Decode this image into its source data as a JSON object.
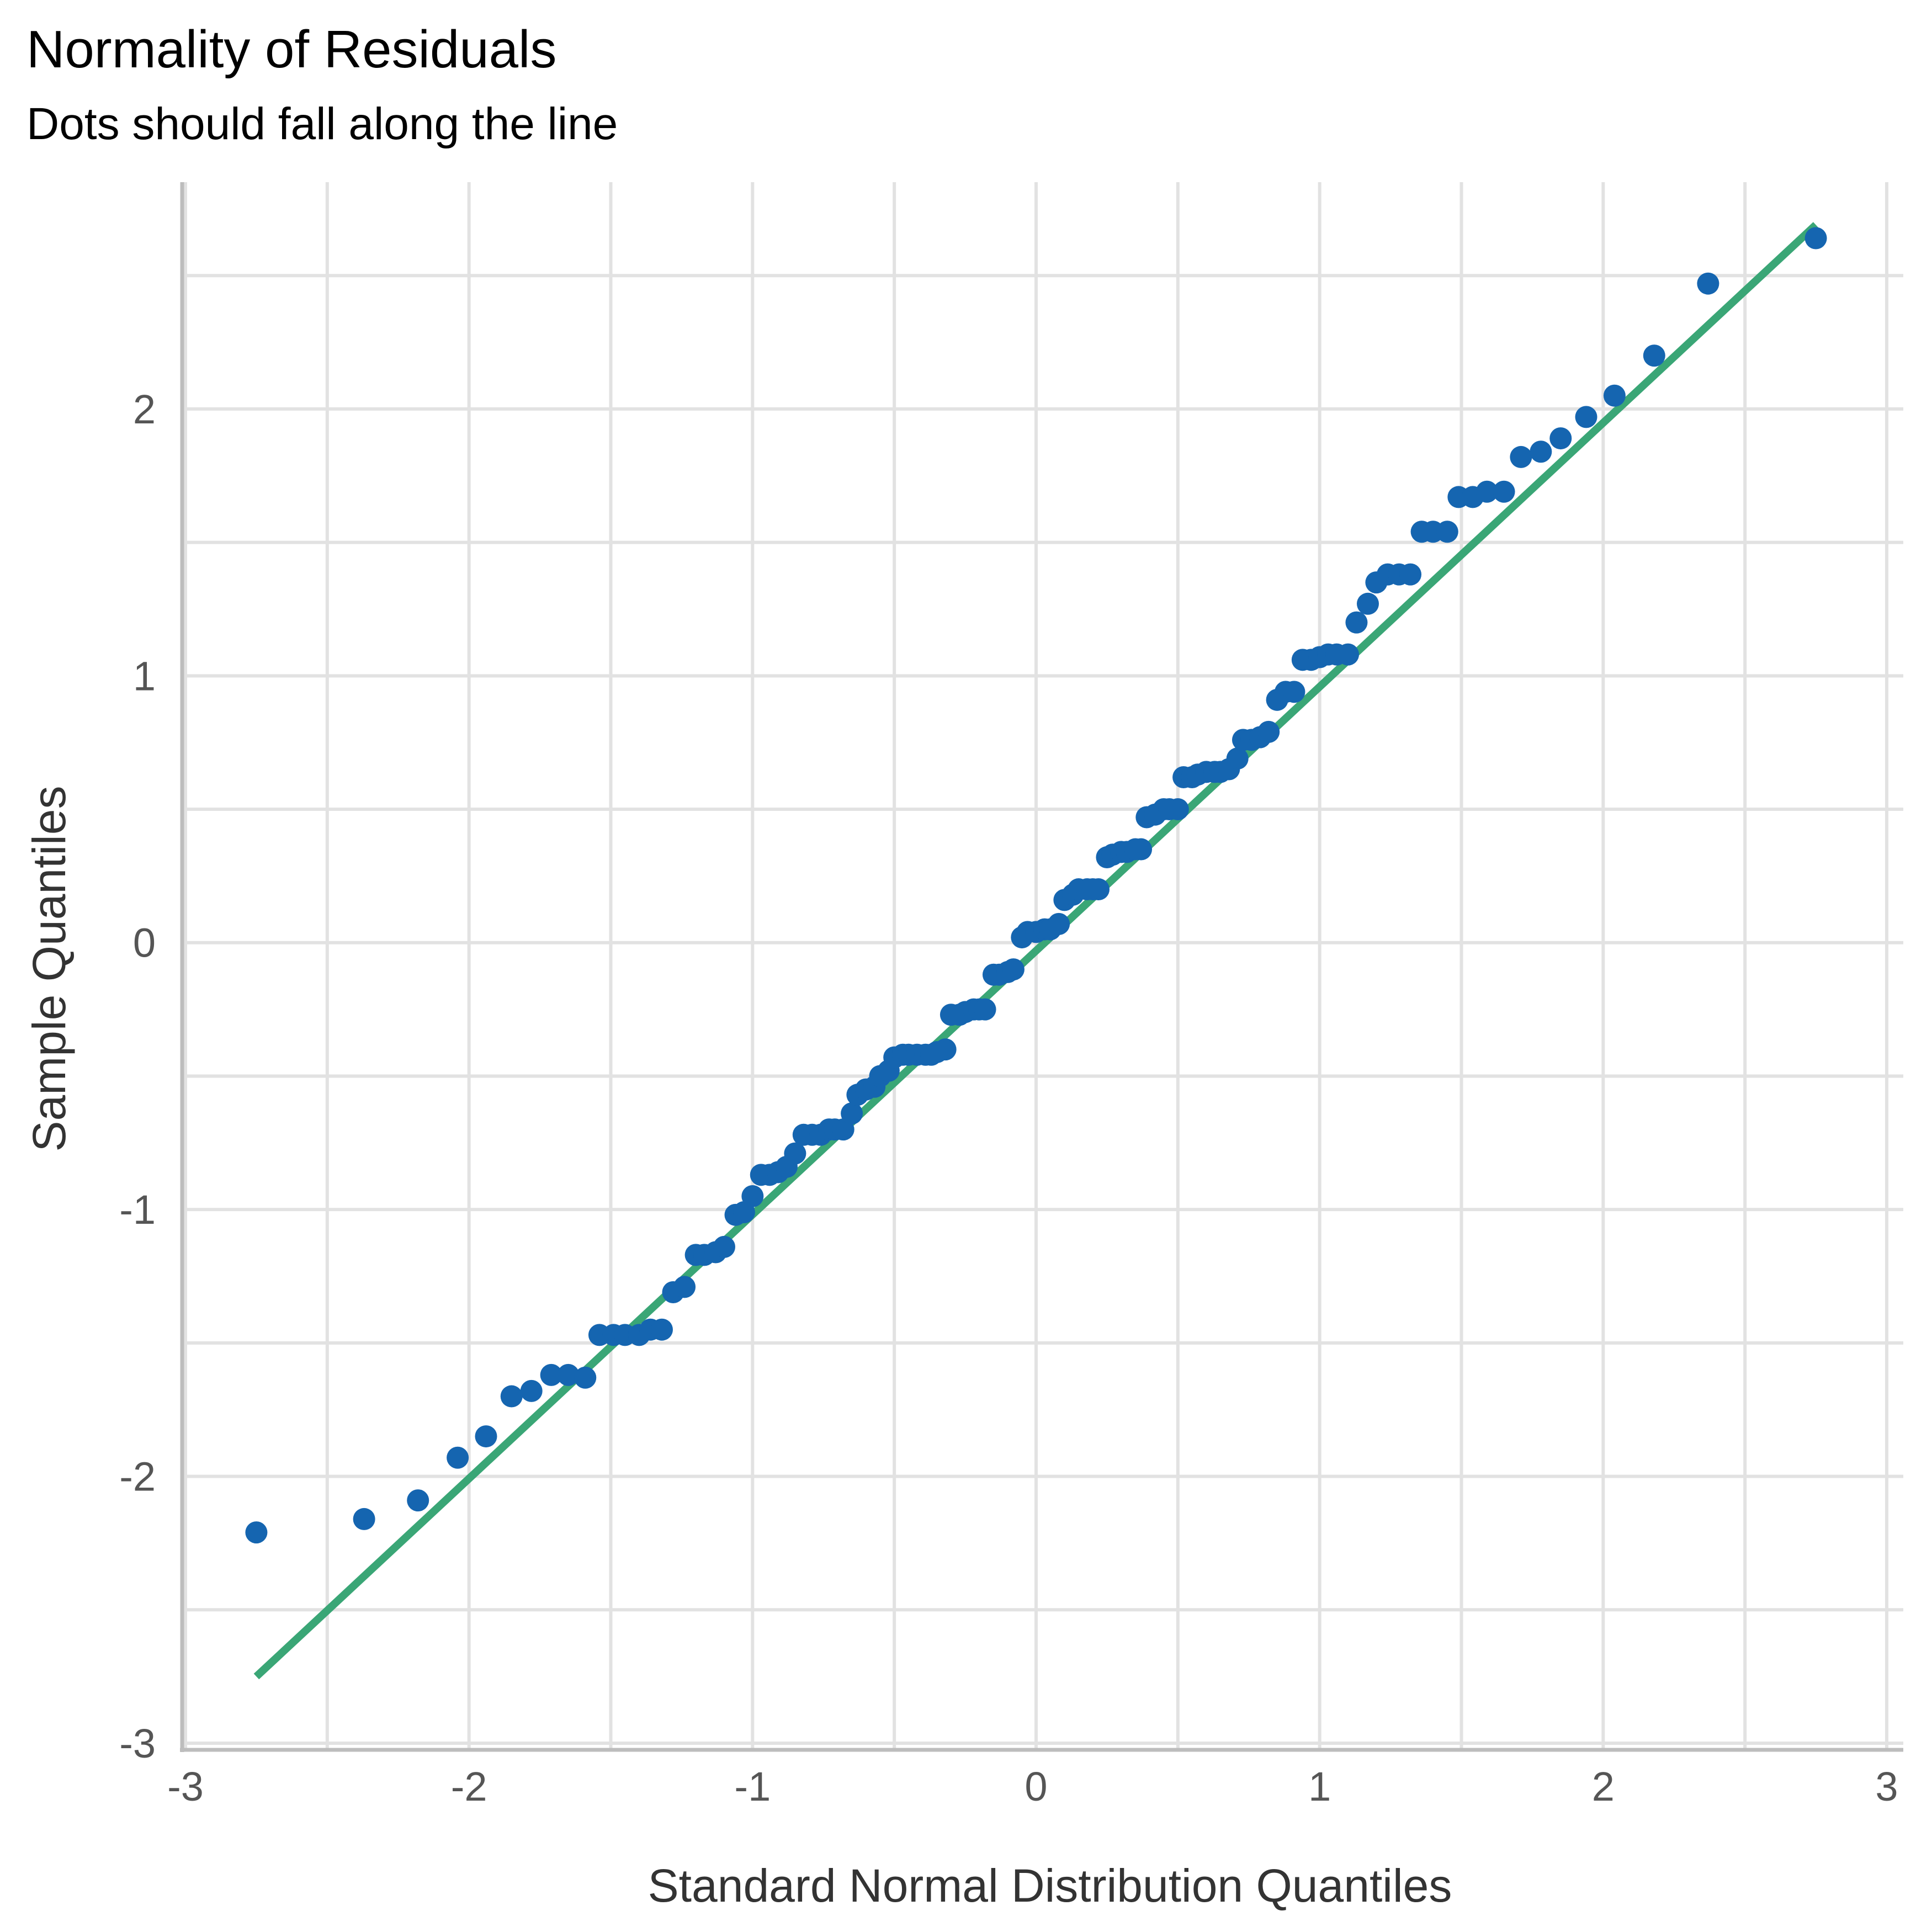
{
  "chart_data": {
    "type": "scatter",
    "title": "Normality of Residuals",
    "subtitle": "Dots should fall along the line",
    "xlabel": "Standard Normal Distribution Quantiles",
    "ylabel": "Sample Quantiles",
    "xlim": [
      -3,
      3
    ],
    "ylim": [
      -3,
      2.85
    ],
    "xticks": [
      -3,
      -2,
      -1,
      0,
      1,
      2,
      3
    ],
    "xtick_labels": [
      "-3",
      "-2",
      "-1",
      "0",
      "1",
      "2",
      "3"
    ],
    "yticks": [
      -3,
      -2,
      -1,
      0,
      1,
      2
    ],
    "ytick_labels": [
      "-3",
      "-2",
      "-1",
      "0",
      "1",
      "2"
    ],
    "grid": true,
    "reference_line": {
      "x": [
        -2.75,
        2.75
      ],
      "y": [
        -2.75,
        2.69
      ],
      "color": "#3AA676"
    },
    "point_color": "#1565B0",
    "points": [
      [
        -2.75,
        -2.21
      ],
      [
        -2.37,
        -2.16
      ],
      [
        -2.18,
        -2.09
      ],
      [
        -2.04,
        -1.93
      ],
      [
        -1.94,
        -1.85
      ],
      [
        -1.85,
        -1.7
      ],
      [
        -1.78,
        -1.68
      ],
      [
        -1.71,
        -1.62
      ],
      [
        -1.65,
        -1.62
      ],
      [
        -1.59,
        -1.63
      ],
      [
        -1.54,
        -1.47
      ],
      [
        -1.49,
        -1.47
      ],
      [
        -1.45,
        -1.47
      ],
      [
        -1.4,
        -1.47
      ],
      [
        -1.36,
        -1.45
      ],
      [
        -1.32,
        -1.45
      ],
      [
        -1.28,
        -1.31
      ],
      [
        -1.24,
        -1.29
      ],
      [
        -1.2,
        -1.17
      ],
      [
        -1.17,
        -1.17
      ],
      [
        -1.13,
        -1.16
      ],
      [
        -1.1,
        -1.14
      ],
      [
        -1.06,
        -1.02
      ],
      [
        -1.03,
        -1.01
      ],
      [
        -1.0,
        -0.95
      ],
      [
        -0.97,
        -0.87
      ],
      [
        -0.94,
        -0.87
      ],
      [
        -0.91,
        -0.86
      ],
      [
        -0.88,
        -0.84
      ],
      [
        -0.85,
        -0.79
      ],
      [
        -0.82,
        -0.72
      ],
      [
        -0.79,
        -0.72
      ],
      [
        -0.76,
        -0.72
      ],
      [
        -0.73,
        -0.7
      ],
      [
        -0.71,
        -0.7
      ],
      [
        -0.68,
        -0.7
      ],
      [
        -0.65,
        -0.64
      ],
      [
        -0.63,
        -0.57
      ],
      [
        -0.6,
        -0.55
      ],
      [
        -0.57,
        -0.54
      ],
      [
        -0.55,
        -0.5
      ],
      [
        -0.52,
        -0.48
      ],
      [
        -0.5,
        -0.43
      ],
      [
        -0.47,
        -0.42
      ],
      [
        -0.45,
        -0.42
      ],
      [
        -0.42,
        -0.42
      ],
      [
        -0.39,
        -0.42
      ],
      [
        -0.37,
        -0.42
      ],
      [
        -0.35,
        -0.41
      ],
      [
        -0.32,
        -0.4
      ],
      [
        -0.3,
        -0.27
      ],
      [
        -0.27,
        -0.27
      ],
      [
        -0.25,
        -0.26
      ],
      [
        -0.22,
        -0.25
      ],
      [
        -0.2,
        -0.25
      ],
      [
        -0.18,
        -0.25
      ],
      [
        -0.15,
        -0.12
      ],
      [
        -0.13,
        -0.12
      ],
      [
        -0.1,
        -0.11
      ],
      [
        -0.08,
        -0.1
      ],
      [
        -0.05,
        0.02
      ],
      [
        -0.03,
        0.04
      ],
      [
        0.0,
        0.04
      ],
      [
        0.03,
        0.05
      ],
      [
        0.05,
        0.05
      ],
      [
        0.08,
        0.07
      ],
      [
        0.1,
        0.16
      ],
      [
        0.13,
        0.18
      ],
      [
        0.15,
        0.2
      ],
      [
        0.18,
        0.2
      ],
      [
        0.2,
        0.2
      ],
      [
        0.22,
        0.2
      ],
      [
        0.25,
        0.32
      ],
      [
        0.27,
        0.33
      ],
      [
        0.3,
        0.34
      ],
      [
        0.32,
        0.34
      ],
      [
        0.35,
        0.35
      ],
      [
        0.37,
        0.35
      ],
      [
        0.39,
        0.47
      ],
      [
        0.42,
        0.48
      ],
      [
        0.45,
        0.5
      ],
      [
        0.47,
        0.5
      ],
      [
        0.5,
        0.5
      ],
      [
        0.52,
        0.62
      ],
      [
        0.55,
        0.62
      ],
      [
        0.57,
        0.63
      ],
      [
        0.6,
        0.64
      ],
      [
        0.63,
        0.64
      ],
      [
        0.65,
        0.64
      ],
      [
        0.68,
        0.65
      ],
      [
        0.71,
        0.69
      ],
      [
        0.73,
        0.76
      ],
      [
        0.76,
        0.76
      ],
      [
        0.79,
        0.77
      ],
      [
        0.82,
        0.79
      ],
      [
        0.85,
        0.91
      ],
      [
        0.88,
        0.94
      ],
      [
        0.91,
        0.94
      ],
      [
        0.94,
        1.06
      ],
      [
        0.97,
        1.06
      ],
      [
        1.0,
        1.07
      ],
      [
        1.03,
        1.08
      ],
      [
        1.06,
        1.08
      ],
      [
        1.1,
        1.08
      ],
      [
        1.13,
        1.2
      ],
      [
        1.17,
        1.27
      ],
      [
        1.2,
        1.35
      ],
      [
        1.24,
        1.38
      ],
      [
        1.28,
        1.38
      ],
      [
        1.32,
        1.38
      ],
      [
        1.36,
        1.54
      ],
      [
        1.4,
        1.54
      ],
      [
        1.45,
        1.54
      ],
      [
        1.49,
        1.67
      ],
      [
        1.54,
        1.67
      ],
      [
        1.59,
        1.69
      ],
      [
        1.65,
        1.69
      ],
      [
        1.71,
        1.82
      ],
      [
        1.78,
        1.84
      ],
      [
        1.85,
        1.89
      ],
      [
        1.94,
        1.97
      ],
      [
        2.04,
        2.05
      ],
      [
        2.18,
        2.2
      ],
      [
        2.37,
        2.47
      ],
      [
        2.75,
        2.64
      ]
    ]
  }
}
